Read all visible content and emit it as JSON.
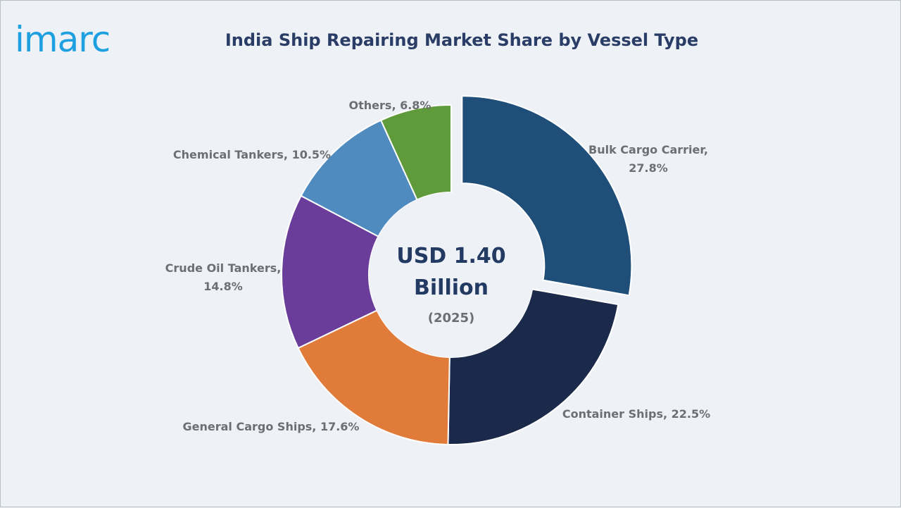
{
  "brand": {
    "logo_text": "imarc",
    "color": "#1e9fe0"
  },
  "title": "India Ship Repairing Market Share by Vessel Type",
  "chart_data": {
    "type": "pie",
    "variant": "donut",
    "title": "India Ship Repairing Market Share by Vessel Type",
    "unit": "%",
    "center_label": {
      "line1": "USD 1.40",
      "line2": "Billion",
      "line3": "(2025)"
    },
    "slices": [
      {
        "name": "Bulk Cargo Carrier",
        "value": 27.8,
        "color": "#1f4e79",
        "exploded": true,
        "label_line1": "Bulk Cargo Carrier,",
        "label_line2": "27.8%"
      },
      {
        "name": "Container Ships",
        "value": 22.5,
        "color": "#1b2a4a",
        "exploded": false,
        "label_line1": "Container Ships, 22.5%",
        "label_line2": ""
      },
      {
        "name": "General Cargo Ships",
        "value": 17.6,
        "color": "#e07b39",
        "exploded": false,
        "label_line1": "General Cargo Ships, 17.6%",
        "label_line2": ""
      },
      {
        "name": "Crude Oil Tankers",
        "value": 14.8,
        "color": "#6a3d9a",
        "exploded": false,
        "label_line1": "Crude Oil Tankers,",
        "label_line2": "14.8%"
      },
      {
        "name": "Chemical Tankers",
        "value": 10.5,
        "color": "#4f8bbf",
        "exploded": false,
        "label_line1": "Chemical Tankers, 10.5%",
        "label_line2": ""
      },
      {
        "name": "Others",
        "value": 6.8,
        "color": "#5f9b3a",
        "exploded": false,
        "label_line1": "Others, 6.8%",
        "label_line2": ""
      }
    ]
  }
}
